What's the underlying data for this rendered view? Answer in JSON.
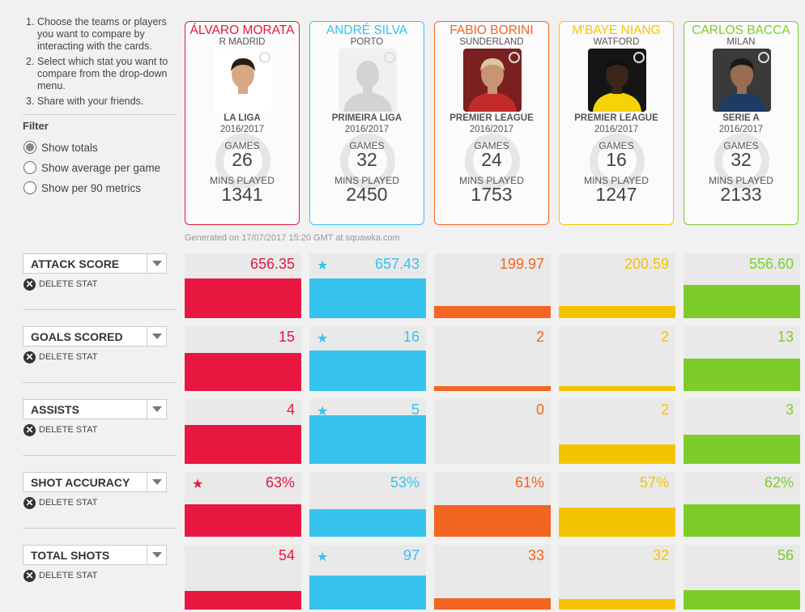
{
  "instructions": [
    {
      "num": "1.",
      "text": "Choose the teams or players you want to compare by interacting with the cards."
    },
    {
      "num": "2.",
      "text": "Select which stat you want to compare from the drop-down menu."
    },
    {
      "num": "3.",
      "text": "Share with your friends."
    }
  ],
  "filter": {
    "title": "Filter",
    "options": [
      {
        "label": "Show totals",
        "selected": true
      },
      {
        "label": "Show average per game",
        "selected": false
      },
      {
        "label": "Show per 90 metrics",
        "selected": false
      }
    ]
  },
  "labels": {
    "games": "GAMES",
    "mins_played": "MINS PLAYED",
    "delete_stat": "DELETE STAT",
    "delete_icon": "✕",
    "star": "★"
  },
  "generated": "Generated on 17/07/2017 15:20 GMT at squawka.com",
  "players": [
    {
      "name": "ÁLVARO MORATA",
      "team": "R MADRID",
      "league": "LA LIGA",
      "season": "2016/2017",
      "games": "26",
      "mins": "1341",
      "color": "#e8173f",
      "photo": "person-photo",
      "bg": "#ffffff",
      "skin": "#d8a884",
      "shirt": "#ffffff",
      "hair": "#2a1d16"
    },
    {
      "name": "ANDRÉ SILVA",
      "team": "PORTO",
      "league": "PRIMEIRA LIGA",
      "season": "2016/2017",
      "games": "32",
      "mins": "2450",
      "color": "#35c3ee",
      "photo": "placeholder-silhouette",
      "bg": "#f0f0f0",
      "skin": "#d3d3d3",
      "shirt": "#d3d3d3",
      "hair": "#d3d3d3"
    },
    {
      "name": "FABIO BORINI",
      "team": "SUNDERLAND",
      "league": "PREMIER LEAGUE",
      "season": "2016/2017",
      "games": "24",
      "mins": "1753",
      "color": "#f26522",
      "photo": "person-photo",
      "bg": "#7a2020",
      "skin": "#c89474",
      "shirt": "#c52a2a",
      "hair": "#d9c7a0"
    },
    {
      "name": "M'BAYE NIANG",
      "team": "WATFORD",
      "league": "PREMIER LEAGUE",
      "season": "2016/2017",
      "games": "16",
      "mins": "1247",
      "color": "#f5c400",
      "photo": "person-photo",
      "bg": "#151515",
      "skin": "#3a2619",
      "shirt": "#f5d30a",
      "hair": "#111111"
    },
    {
      "name": "CARLOS BACCA",
      "team": "MILAN",
      "league": "SERIE A",
      "season": "2016/2017",
      "games": "32",
      "mins": "2133",
      "color": "#7ccd2a",
      "photo": "person-photo",
      "bg": "#3a3a3a",
      "skin": "#9a6c50",
      "shirt": "#1e3b63",
      "hair": "#191919"
    }
  ],
  "stats": [
    {
      "label": "ATTACK SCORE",
      "values": [
        "656.35",
        "657.43",
        "199.97",
        "200.59",
        "556.60"
      ],
      "best": 1,
      "fills": [
        0.76,
        0.76,
        0.23,
        0.23,
        0.64
      ]
    },
    {
      "label": "GOALS SCORED",
      "values": [
        "15",
        "16",
        "2",
        "2",
        "13"
      ],
      "best": 1,
      "fills": [
        0.73,
        0.78,
        0.1,
        0.1,
        0.63
      ]
    },
    {
      "label": "ASSISTS",
      "values": [
        "4",
        "5",
        "0",
        "2",
        "3"
      ],
      "best": 1,
      "fills": [
        0.75,
        0.94,
        0.0,
        0.38,
        0.56
      ]
    },
    {
      "label": "SHOT ACCURACY",
      "values": [
        "63%",
        "53%",
        "61%",
        "57%",
        "62%"
      ],
      "best": 0,
      "fills": [
        0.63,
        0.53,
        0.61,
        0.57,
        0.62
      ]
    },
    {
      "label": "TOTAL SHOTS",
      "values": [
        "54",
        "97",
        "33",
        "32",
        "56"
      ],
      "best": 1,
      "fills": [
        0.36,
        0.65,
        0.22,
        0.21,
        0.37
      ]
    }
  ]
}
